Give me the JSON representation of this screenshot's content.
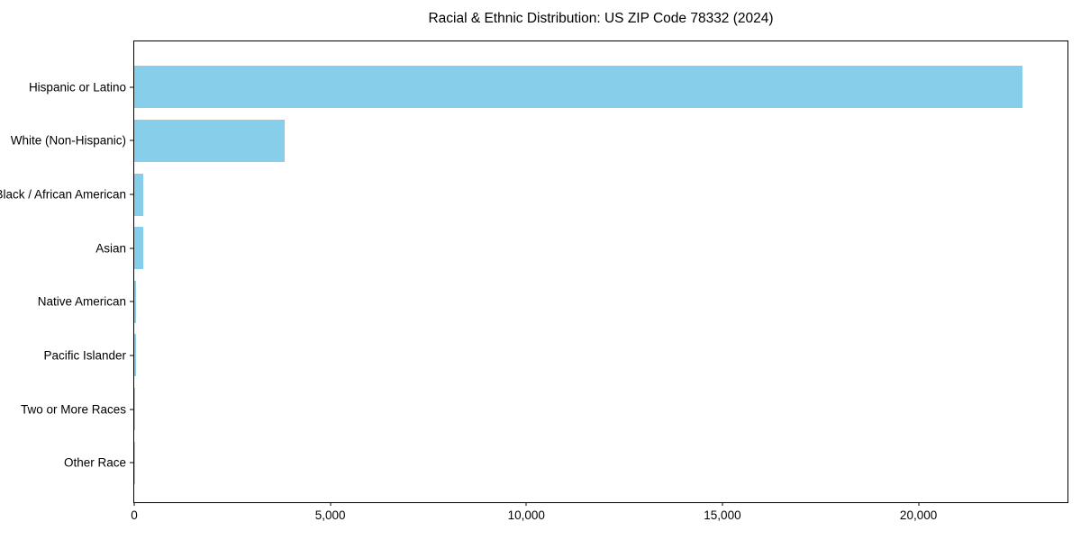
{
  "chart_data": {
    "type": "bar",
    "orientation": "horizontal",
    "title": "Racial & Ethnic Distribution: US ZIP Code 78332 (2024)",
    "xlabel": "",
    "ylabel": "",
    "categories": [
      "Hispanic or Latino",
      "White (Non-Hispanic)",
      "Black / African American",
      "Asian",
      "Native American",
      "Pacific Islander",
      "Two or More Races",
      "Other Race"
    ],
    "values": [
      22660,
      3840,
      240,
      220,
      50,
      55,
      25,
      5
    ],
    "xlim": [
      0,
      23800
    ],
    "x_ticks": [
      0,
      5000,
      10000,
      15000,
      20000
    ],
    "x_tick_labels": [
      "0",
      "5,000",
      "10,000",
      "15,000",
      "20,000"
    ],
    "grid": false,
    "legend": null,
    "bar_color": "#87CEEB",
    "axis_color": "#000000",
    "text_color": "#000000",
    "background_color": "#FFFFFF"
  }
}
